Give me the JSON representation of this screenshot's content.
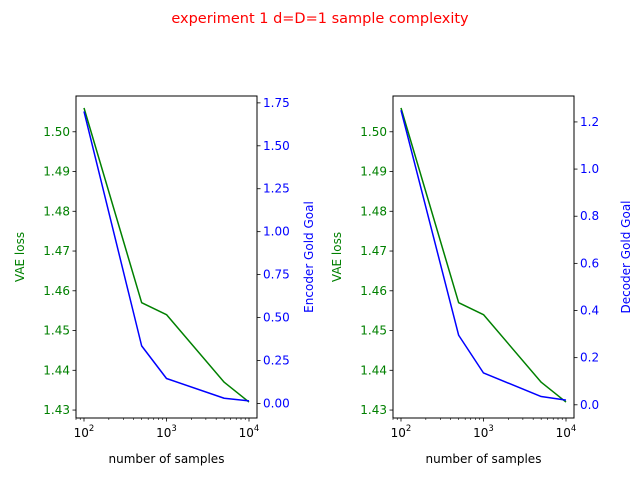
{
  "figure": {
    "suptitle": "experiment 1 d=D=1 sample complexity",
    "suptitle_color": "#ff0000"
  },
  "chart_data": [
    {
      "type": "line",
      "title": "",
      "xlabel": "number of samples",
      "x_scale": "log",
      "xlim": [
        80,
        12500
      ],
      "x_ticks": [
        {
          "value": 100,
          "base": "10",
          "exp": "2"
        },
        {
          "value": 1000,
          "base": "10",
          "exp": "3"
        },
        {
          "value": 10000,
          "base": "10",
          "exp": "4"
        }
      ],
      "x": [
        100,
        500,
        1000,
        5000,
        10000
      ],
      "left_axis": {
        "label": "VAE loss",
        "color": "#008000",
        "ylim": [
          1.428,
          1.509
        ],
        "ticks": [
          "1.43",
          "1.44",
          "1.45",
          "1.46",
          "1.47",
          "1.48",
          "1.49",
          "1.50"
        ]
      },
      "right_axis": {
        "label": "Encoder Gold Goal",
        "color": "#0000ff",
        "ylim": [
          -0.085,
          1.79
        ],
        "ticks": [
          "0.00",
          "0.25",
          "0.50",
          "0.75",
          "1.00",
          "1.25",
          "1.50",
          "1.75"
        ]
      },
      "series": [
        {
          "axis": "left",
          "color": "#008000",
          "values": [
            1.506,
            1.457,
            1.454,
            1.437,
            1.432
          ]
        },
        {
          "axis": "right",
          "color": "#0000ff",
          "values": [
            1.7,
            0.335,
            0.145,
            0.03,
            0.015
          ]
        }
      ],
      "grid": false
    },
    {
      "type": "line",
      "title": "",
      "xlabel": "number of samples",
      "x_scale": "log",
      "xlim": [
        80,
        12500
      ],
      "x_ticks": [
        {
          "value": 100,
          "base": "10",
          "exp": "2"
        },
        {
          "value": 1000,
          "base": "10",
          "exp": "3"
        },
        {
          "value": 10000,
          "base": "10",
          "exp": "4"
        }
      ],
      "x": [
        100,
        500,
        1000,
        5000,
        10000
      ],
      "left_axis": {
        "label": "VAE loss",
        "color": "#008000",
        "ylim": [
          1.428,
          1.509
        ],
        "ticks": [
          "1.43",
          "1.44",
          "1.45",
          "1.46",
          "1.47",
          "1.48",
          "1.49",
          "1.50"
        ]
      },
      "right_axis": {
        "label": "Decoder Gold Goal",
        "color": "#0000ff",
        "ylim": [
          -0.056,
          1.31
        ],
        "ticks": [
          "0.0",
          "0.2",
          "0.4",
          "0.6",
          "0.8",
          "1.0",
          "1.2"
        ]
      },
      "series": [
        {
          "axis": "left",
          "color": "#008000",
          "values": [
            1.506,
            1.457,
            1.454,
            1.437,
            1.432
          ]
        },
        {
          "axis": "right",
          "color": "#0000ff",
          "values": [
            1.25,
            0.295,
            0.135,
            0.035,
            0.02
          ]
        }
      ],
      "grid": false
    }
  ]
}
